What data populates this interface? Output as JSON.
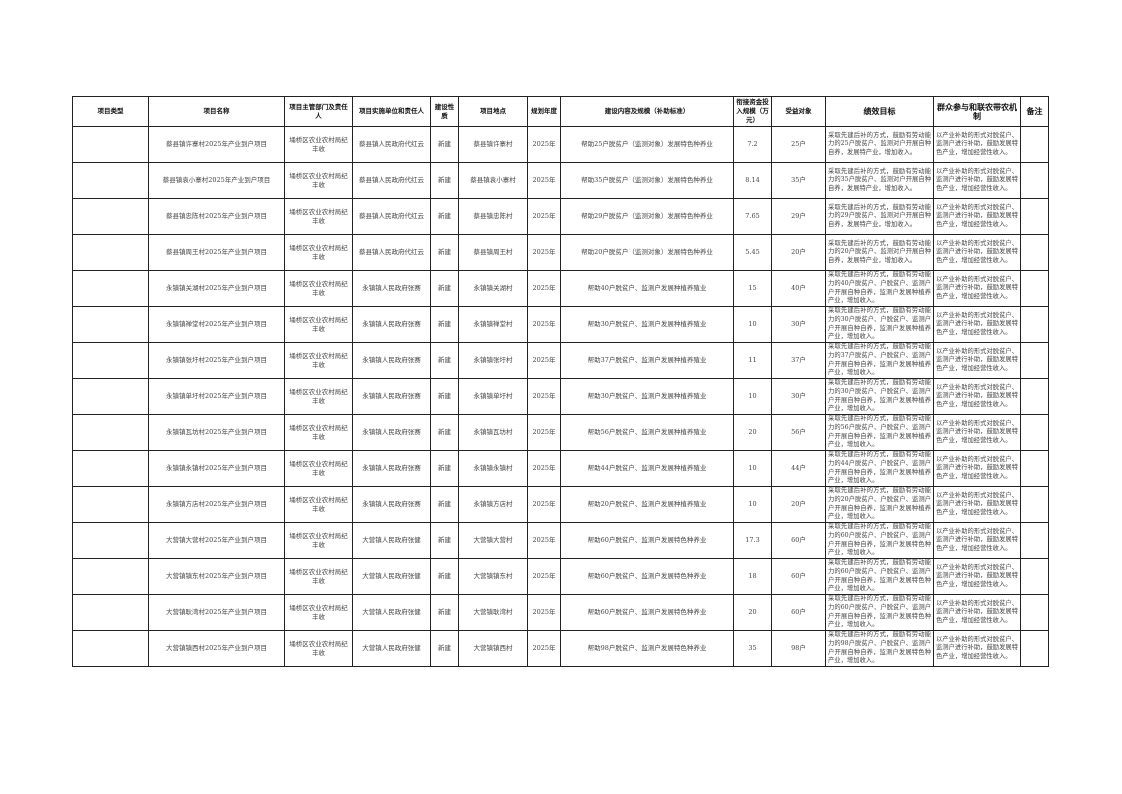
{
  "headers": [
    "项目类型",
    "项目名称",
    "项目主管部门及责任人",
    "项目实施单位和责任人",
    "建设性质",
    "项目地点",
    "规划年度",
    "建设内容及规模（补助标准）",
    "衔接资金投入规模（万元）",
    "受益对象",
    "绩效目标",
    "群众参与和联农带农机制",
    "备注"
  ],
  "rows": [
    {
      "type": "",
      "name": "蔡县镇许寨村2025年产业到户项目",
      "dept": "埇桥区农业农村局纪丰收",
      "unit": "蔡县镇人民政府代红云",
      "nature": "新建",
      "location": "蔡县镇许寨村",
      "year": "2025年",
      "content": "帮助25户脱贫户（监测对象）发展特色种养业",
      "funds": "7.2",
      "beneficiaries": "25户",
      "goal": "采取先建后补的方式，鼓励有劳动能力的25户脱贫户、监测对户开展自种自养，发展特产业，增加收入。",
      "mechanism": "以产业补助的形式对脱贫户、监测户进行补助，鼓励发展特色产业，增加经营性收入。",
      "note": ""
    },
    {
      "type": "",
      "name": "蔡县镇袁小寨村2025年产业到户项目",
      "dept": "埇桥区农业农村局纪丰收",
      "unit": "蔡县镇人民政府代红云",
      "nature": "新建",
      "location": "蔡县镇袁小寨村",
      "year": "2025年",
      "content": "帮助35户脱贫户（监测对象）发展特色种养业",
      "funds": "8.14",
      "beneficiaries": "35户",
      "goal": "采取先建后补的方式，鼓励有劳动能力的35户脱贫户、监测对户开展自种自养，发展特产业，增加收入。",
      "mechanism": "以产业补助的形式对脱贫户、监测户进行补助，鼓励发展特色产业，增加经营性收入。",
      "note": ""
    },
    {
      "type": "",
      "name": "蔡县镇忠陈村2025年产业到户项目",
      "dept": "埇桥区农业农村局纪丰收",
      "unit": "蔡县镇人民政府代红云",
      "nature": "新建",
      "location": "蔡县镇忠陈村",
      "year": "2025年",
      "content": "帮助29户脱贫户（监测对象）发展特色种养业",
      "funds": "7.65",
      "beneficiaries": "29户",
      "goal": "采取先建后补的方式，鼓励有劳动能力的29户脱贫户、监测对户开展自种自养，发展特产业，增加收入。",
      "mechanism": "以产业补助的形式对脱贫户、监测户进行补助，鼓励发展特色产业，增加经营性收入。",
      "note": ""
    },
    {
      "type": "",
      "name": "蔡县镇周王村2025年产业到户项目",
      "dept": "埇桥区农业农村局纪丰收",
      "unit": "蔡县镇人民政府代红云",
      "nature": "新建",
      "location": "蔡县镇周王村",
      "year": "2025年",
      "content": "帮助20户脱贫户（监测对象）发展特色种养业",
      "funds": "5.45",
      "beneficiaries": "20户",
      "goal": "采取先建后补的方式，鼓励有劳动能力的20户脱贫户、监测对户开展自种自养，发展特产业，增加收入。",
      "mechanism": "以产业补助的形式对脱贫户、监测户进行补助，鼓励发展特色产业，增加经营性收入。",
      "note": ""
    },
    {
      "type": "",
      "name": "永镇镇关湖村2025年产业到户项目",
      "dept": "埇桥区农业农村局纪丰收",
      "unit": "永镇镇人民政府张赛",
      "nature": "新建",
      "location": "永镇镇关湖村",
      "year": "2025年",
      "content": "帮助40户脱贫户、监测户发展种植养殖业",
      "funds": "15",
      "beneficiaries": "40户",
      "goal": "采取先建后补的方式，鼓励有劳动能力的40户脱贫户、户脱贫户、监测户户开展自种自养，监测户发展种植养产业，增加收入。",
      "mechanism": "以产业补助的形式对脱贫户、监测户进行补助，鼓励发展特色产业，增加经营性收入。",
      "note": ""
    },
    {
      "type": "",
      "name": "永镇镇禅堂村2025年产业到户项目",
      "dept": "埇桥区农业农村局纪丰收",
      "unit": "永镇镇人民政府张赛",
      "nature": "新建",
      "location": "永镇镇禅堂村",
      "year": "2025年",
      "content": "帮助30户脱贫户、监测户发展种植养殖业",
      "funds": "10",
      "beneficiaries": "30户",
      "goal": "采取先建后补的方式，鼓励有劳动能力的30户脱贫户、户脱贫户、监测户户开展自种自养，监测户发展种植养产业，增加收入。",
      "mechanism": "以产业补助的形式对脱贫户、监测户进行补助，鼓励发展特色产业，增加经营性收入。",
      "note": ""
    },
    {
      "type": "",
      "name": "永镇镇张圩村2025年产业到户项目",
      "dept": "埇桥区农业农村局纪丰收",
      "unit": "永镇镇人民政府张赛",
      "nature": "新建",
      "location": "永镇镇张圩村",
      "year": "2025年",
      "content": "帮助37户脱贫户、监测户发展种植养殖业",
      "funds": "11",
      "beneficiaries": "37户",
      "goal": "采取先建后补的方式，鼓励有劳动能力的37户脱贫户、户脱贫户、监测户户开展自种自养，监测户发展种植养产业，增加收入。",
      "mechanism": "以产业补助的形式对脱贫户、监测户进行补助，鼓励发展特色产业，增加经营性收入。",
      "note": ""
    },
    {
      "type": "",
      "name": "永镇镇单圩村2025年产业到户项目",
      "dept": "埇桥区农业农村局纪丰收",
      "unit": "永镇镇人民政府张赛",
      "nature": "新建",
      "location": "永镇镇单圩村",
      "year": "2025年",
      "content": "帮助30户脱贫户、监测户发展种植养殖业",
      "funds": "10",
      "beneficiaries": "30户",
      "goal": "采取先建后补的方式，鼓励有劳动能力的30户脱贫户、户脱贫户、监测户户开展自种自养，监测户发展种植养产业，增加收入。",
      "mechanism": "以产业补助的形式对脱贫户、监测户进行补助，鼓励发展特色产业，增加经营性收入。",
      "note": ""
    },
    {
      "type": "",
      "name": "永镇镇瓦坊村2025年产业到户项目",
      "dept": "埇桥区农业农村局纪丰收",
      "unit": "永镇镇人民政府张赛",
      "nature": "新建",
      "location": "永镇镇瓦坊村",
      "year": "2025年",
      "content": "帮助56户脱贫户、监测户发展种植养殖业",
      "funds": "20",
      "beneficiaries": "56户",
      "goal": "采取先建后补的方式，鼓励有劳动能力的56户脱贫户、户脱贫户、监测户户开展自种自养，监测户发展种植养产业，增加收入。",
      "mechanism": "以产业补助的形式对脱贫户、监测户进行补助，鼓励发展特色产业，增加经营性收入。",
      "note": ""
    },
    {
      "type": "",
      "name": "永镇镇永镇村2025年产业到户项目",
      "dept": "埇桥区农业农村局纪丰收",
      "unit": "永镇镇人民政府张赛",
      "nature": "新建",
      "location": "永镇镇永镇村",
      "year": "2025年",
      "content": "帮助44户脱贫户、监测户发展种植养殖业",
      "funds": "10",
      "beneficiaries": "44户",
      "goal": "采取先建后补的方式，鼓励有劳动能力的44户脱贫户、户脱贫户、监测户户开展自种自养，监测户发展种植养产业，增加收入。",
      "mechanism": "以产业补助的形式对脱贫户、监测户进行补助，鼓励发展特色产业，增加经营性收入。",
      "note": ""
    },
    {
      "type": "",
      "name": "永镇镇方店村2025年产业到户项目",
      "dept": "埇桥区农业农村局纪丰收",
      "unit": "永镇镇人民政府张赛",
      "nature": "新建",
      "location": "永镇镇方店村",
      "year": "2025年",
      "content": "帮助20户脱贫户、监测户发展种植养殖业",
      "funds": "10",
      "beneficiaries": "20户",
      "goal": "采取先建后补的方式，鼓励有劳动能力的20户脱贫户、户脱贫户、监测户户开展自种自养，监测户发展种植养产业，增加收入。",
      "mechanism": "以产业补助的形式对脱贫户、监测户进行补助，鼓励发展特色产业，增加经营性收入。",
      "note": ""
    },
    {
      "type": "",
      "name": "大营镇大营村2025年产业到户项目",
      "dept": "埇桥区农业农村局纪丰收",
      "unit": "大营镇人民政府张健",
      "nature": "新建",
      "location": "大营镇大营村",
      "year": "2025年",
      "content": "帮助60户脱贫户、监测户发展特色种养业",
      "funds": "17.3",
      "beneficiaries": "60户",
      "goal": "采取先建后补的方式，鼓励有劳动能力的60户脱贫户、户脱贫户、监测户户开展自种自养，监测户发展特色种产业，增加收入。",
      "mechanism": "以产业补助的形式对脱贫户、监测户进行补助，鼓励发展特色产业，增加经营性收入。",
      "note": ""
    },
    {
      "type": "",
      "name": "大营镇镇东村2025年产业到户项目",
      "dept": "埇桥区农业农村局纪丰收",
      "unit": "大营镇人民政府张健",
      "nature": "新建",
      "location": "大营镇镇东村",
      "year": "2025年",
      "content": "帮助60户脱贫户、监测户发展特色种养业",
      "funds": "18",
      "beneficiaries": "60户",
      "goal": "采取先建后补的方式，鼓励有劳动能力的60户脱贫户、户脱贫户、监测户户开展自种自养，监测户发展特色种产业，增加收入。",
      "mechanism": "以产业补助的形式对脱贫户、监测户进行补助，鼓励发展特色产业，增加经营性收入。",
      "note": ""
    },
    {
      "type": "",
      "name": "大营镇耿湾村2025年产业到户项目",
      "dept": "埇桥区农业农村局纪丰收",
      "unit": "大营镇人民政府张健",
      "nature": "新建",
      "location": "大营镇耿湾村",
      "year": "2025年",
      "content": "帮助60户脱贫户、监测户发展特色种养业",
      "funds": "20",
      "beneficiaries": "60户",
      "goal": "采取先建后补的方式，鼓励有劳动能力的60户脱贫户、户脱贫户、监测户户开展自种自养，监测户发展特色种产业，增加收入。",
      "mechanism": "以产业补助的形式对脱贫户、监测户进行补助，鼓励发展特色产业，增加经营性收入。",
      "note": ""
    },
    {
      "type": "",
      "name": "大营镇镇西村2025年产业到户项目",
      "dept": "埇桥区农业农村局纪丰收",
      "unit": "大营镇人民政府张健",
      "nature": "新建",
      "location": "大营镇镇西村",
      "year": "2025年",
      "content": "帮助98户脱贫户、监测户发展特色种养业",
      "funds": "35",
      "beneficiaries": "98户",
      "goal": "采取先建后补的方式，鼓励有劳动能力的98户脱贫户、户脱贫户、监测户户开展自种自养，监测户发展特色种产业，增加收入。",
      "mechanism": "以产业补助的形式对脱贫户、监测户进行补助，鼓励发展特色产业，增加经营性收入。",
      "note": ""
    }
  ]
}
